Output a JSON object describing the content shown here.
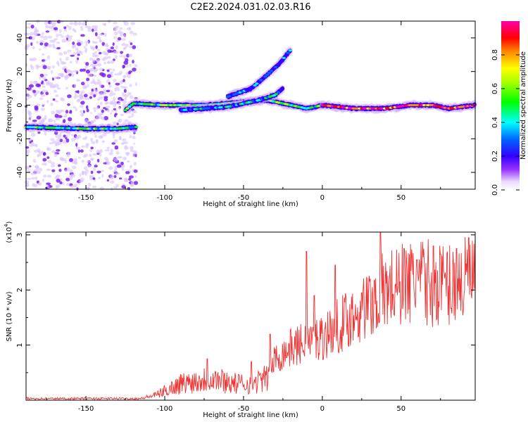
{
  "title": "C2E2.2024.031.02.03.R16",
  "chart_data": [
    {
      "type": "heatmap",
      "title": "C2E2.2024.031.02.03.R16",
      "xlabel": "Height of straight line (km)",
      "ylabel": "Frequency (Hz)",
      "xlim": [
        -188,
        97
      ],
      "ylim": [
        -50,
        50
      ],
      "xticks": [
        -150,
        -100,
        -50,
        0,
        50
      ],
      "yticks": [
        -40,
        -20,
        0,
        20,
        40
      ],
      "colorbar": {
        "label": "Normalized spectral amplitude",
        "range": [
          0,
          1
        ],
        "ticks": [
          0.0,
          0.2,
          0.4,
          0.6,
          0.8
        ],
        "tick_labels": [
          "0.0",
          "0.2",
          "0.4",
          "0.6",
          "0.8"
        ],
        "colormap": [
          "#ffffff",
          "#cc99ff",
          "#6600cc",
          "#0000ff",
          "#00ffff",
          "#00ff00",
          "#ffff00",
          "#ff0000",
          "#ff00ff"
        ]
      },
      "ridges": [
        {
          "points": [
            [
              -188,
              -13
            ],
            [
              -150,
              -14
            ],
            [
              -130,
              -14
            ],
            [
              -118,
              -13
            ]
          ],
          "amplitude": 0.4
        },
        {
          "points": [
            [
              -125,
              -3
            ],
            [
              -120,
              1
            ],
            [
              -100,
              0
            ],
            [
              -75,
              0
            ],
            [
              -50,
              2
            ],
            [
              -35,
              3
            ],
            [
              -20,
              0
            ],
            [
              -10,
              -2
            ],
            [
              0,
              0
            ]
          ],
          "amplitude": 0.45
        },
        {
          "points": [
            [
              -90,
              -3
            ],
            [
              -60,
              -1
            ],
            [
              -40,
              3
            ],
            [
              -30,
              6
            ],
            [
              -25,
              10
            ]
          ],
          "amplitude": 0.3
        },
        {
          "points": [
            [
              -60,
              5
            ],
            [
              -45,
              10
            ],
            [
              -35,
              18
            ],
            [
              -28,
              24
            ],
            [
              -20,
              33
            ]
          ],
          "amplitude": 0.22
        },
        {
          "points": [
            [
              0,
              0
            ],
            [
              20,
              -2
            ],
            [
              40,
              -2
            ],
            [
              55,
              0
            ],
            [
              70,
              0
            ],
            [
              80,
              -2
            ],
            [
              97,
              0
            ]
          ],
          "amplitude": 0.85
        }
      ],
      "noise_region": [
        -188,
        -118
      ],
      "grid": false
    },
    {
      "type": "line",
      "xlabel": "Height of straight line (km)",
      "ylabel": "SNR (10 * v/v)",
      "scale_label": "(x10",
      "scale_exp": "4",
      "xlim": [
        -188,
        97
      ],
      "ylim": [
        0,
        3.05
      ],
      "xticks": [
        -150,
        -100,
        -50,
        0,
        50
      ],
      "yticks": [
        1,
        2,
        3
      ],
      "color": "#ee3333",
      "trend": [
        [
          -188,
          0.03
        ],
        [
          -115,
          0.03
        ],
        [
          -105,
          0.1
        ],
        [
          -90,
          0.3
        ],
        [
          -70,
          0.4
        ],
        [
          -55,
          0.3
        ],
        [
          -45,
          0.3
        ],
        [
          -35,
          0.4
        ],
        [
          -30,
          0.75
        ],
        [
          -20,
          0.95
        ],
        [
          -10,
          1.05
        ],
        [
          0,
          1.15
        ],
        [
          10,
          1.35
        ],
        [
          20,
          1.55
        ],
        [
          30,
          1.75
        ],
        [
          40,
          2.0
        ],
        [
          60,
          2.15
        ],
        [
          80,
          2.1
        ],
        [
          97,
          2.2
        ]
      ],
      "spikes": [
        [
          -73,
          0.75
        ],
        [
          -45,
          0.7
        ],
        [
          -33,
          1.2
        ],
        [
          -10,
          2.7
        ],
        [
          -5,
          1.9
        ],
        [
          8,
          2.45
        ],
        [
          25,
          1.95
        ],
        [
          37,
          3.05
        ],
        [
          52,
          2.75
        ],
        [
          60,
          2.55
        ],
        [
          75,
          2.65
        ],
        [
          85,
          2.75
        ],
        [
          93,
          2.95
        ],
        [
          97,
          2.9
        ]
      ],
      "grid": false
    }
  ]
}
